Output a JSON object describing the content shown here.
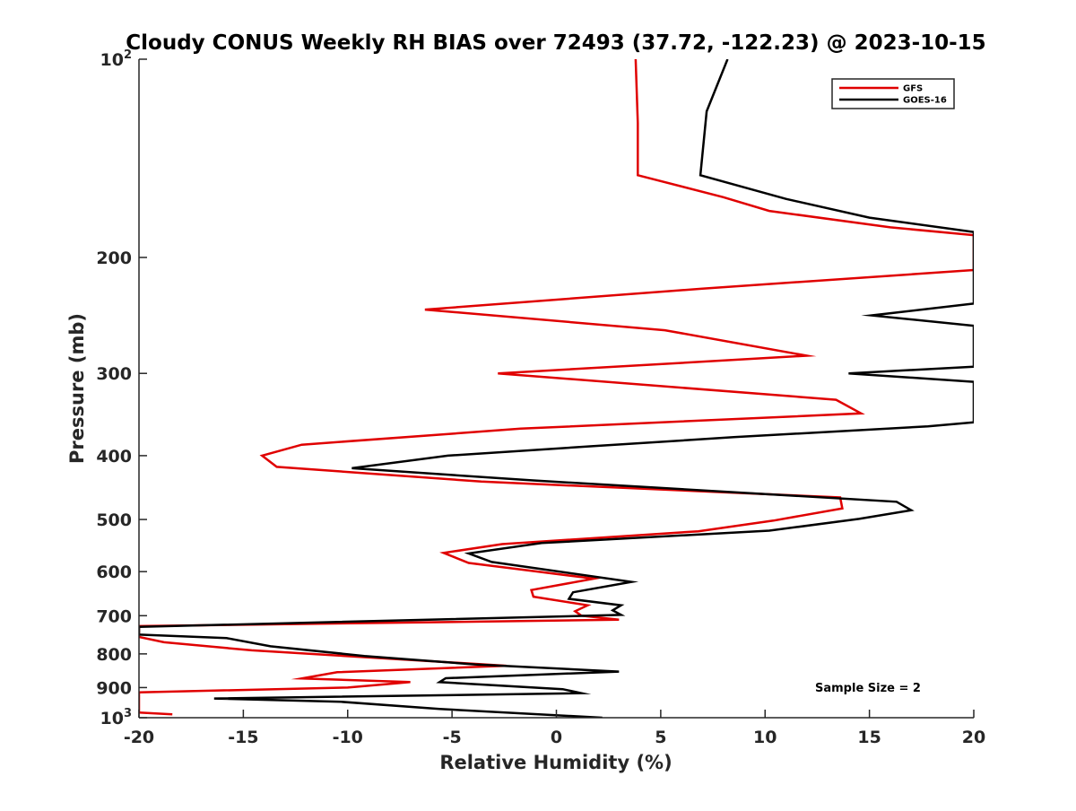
{
  "chart_data": {
    "type": "line",
    "title": "Cloudy CONUS Weekly RH BIAS over 72493 (37.72, -122.23) @ 2023-10-15",
    "xlabel": "Relative Humidity (%)",
    "ylabel": "Pressure (mb)",
    "xlim": [
      -20,
      20
    ],
    "ylim": [
      100,
      1000
    ],
    "y_scale": "log",
    "y_reversed": true,
    "grid": false,
    "x_ticks": [
      -20,
      -15,
      -10,
      -5,
      0,
      5,
      10,
      15,
      20
    ],
    "x_tick_labels": [
      "-20",
      "-15",
      "-10",
      "-5",
      "0",
      "5",
      "10",
      "15",
      "20"
    ],
    "y_ticks": [
      100,
      200,
      300,
      400,
      500,
      600,
      700,
      800,
      900,
      1000
    ],
    "y_tick_labels": [
      {
        "base": "10",
        "sup": "2"
      },
      {
        "base": "200",
        "sup": ""
      },
      {
        "base": "300",
        "sup": ""
      },
      {
        "base": "400",
        "sup": ""
      },
      {
        "base": "500",
        "sup": ""
      },
      {
        "base": "600",
        "sup": ""
      },
      {
        "base": "700",
        "sup": ""
      },
      {
        "base": "800",
        "sup": ""
      },
      {
        "base": "900",
        "sup": ""
      },
      {
        "base": "10",
        "sup": "3"
      }
    ],
    "legend_position": "top-right",
    "annotation": "Sample Size = 2",
    "series": [
      {
        "name": "GFS",
        "color": "#e00000",
        "points": [
          [
            3.8,
            100
          ],
          [
            3.9,
            125
          ],
          [
            3.9,
            150
          ],
          [
            8.0,
            162
          ],
          [
            10.2,
            170
          ],
          [
            16.0,
            180
          ],
          [
            20,
            185
          ],
          [
            20,
            209
          ],
          [
            7.0,
            223
          ],
          [
            -6.3,
            240
          ],
          [
            5.2,
            258
          ],
          [
            12.0,
            282
          ],
          [
            -2.8,
            300
          ],
          [
            13.4,
            329
          ],
          [
            14.6,
            345
          ],
          [
            -1.7,
            364
          ],
          [
            -12.2,
            385
          ],
          [
            -14.1,
            400
          ],
          [
            -13.4,
            416
          ],
          [
            -3.6,
            438
          ],
          [
            13.6,
            463
          ],
          [
            13.7,
            481
          ],
          [
            10.4,
            502
          ],
          [
            6.8,
            521
          ],
          [
            -2.6,
            545
          ],
          [
            -5.4,
            562
          ],
          [
            -4.2,
            582
          ],
          [
            1.8,
            615
          ],
          [
            -1.2,
            640
          ],
          [
            -1.1,
            655
          ],
          [
            1.5,
            675
          ],
          [
            0.9,
            689
          ],
          [
            1.2,
            700
          ],
          [
            3.0,
            710
          ],
          [
            -20,
            726
          ],
          [
            -20,
            754
          ],
          [
            -18.8,
            768
          ],
          [
            -14.6,
            790
          ],
          [
            -2.4,
            834
          ],
          [
            -10.5,
            853
          ],
          [
            -12.2,
            872
          ],
          [
            -7.0,
            883
          ],
          [
            -10.0,
            900
          ],
          [
            -20,
            915
          ],
          [
            -20,
            982
          ],
          [
            -18.4,
            988
          ]
        ]
      },
      {
        "name": "GOES-16",
        "color": "#000000",
        "points": [
          [
            8.2,
            100
          ],
          [
            7.2,
            120
          ],
          [
            6.9,
            150
          ],
          [
            11.0,
            163
          ],
          [
            15.0,
            174
          ],
          [
            20,
            183
          ],
          [
            20,
            235
          ],
          [
            15.1,
            245
          ],
          [
            20,
            254
          ],
          [
            20,
            293
          ],
          [
            14.0,
            300
          ],
          [
            20,
            309
          ],
          [
            20,
            356
          ],
          [
            17.8,
            361
          ],
          [
            8.5,
            375
          ],
          [
            1.7,
            387
          ],
          [
            -5.2,
            400
          ],
          [
            -9.8,
            418
          ],
          [
            -1.2,
            436
          ],
          [
            16.3,
            470
          ],
          [
            17.0,
            484
          ],
          [
            14.5,
            499
          ],
          [
            10.2,
            520
          ],
          [
            -0.7,
            543
          ],
          [
            -4.2,
            563
          ],
          [
            -3.1,
            580
          ],
          [
            3.6,
            622
          ],
          [
            0.8,
            645
          ],
          [
            0.6,
            660
          ],
          [
            3.1,
            675
          ],
          [
            2.7,
            687
          ],
          [
            3.1,
            698
          ],
          [
            -20,
            728
          ],
          [
            -20,
            748
          ],
          [
            -15.8,
            757
          ],
          [
            -13.7,
            779
          ],
          [
            -9.2,
            806
          ],
          [
            -3.9,
            830
          ],
          [
            3.0,
            851
          ],
          [
            -5.3,
            871
          ],
          [
            -5.6,
            883
          ],
          [
            0.3,
            905
          ],
          [
            1.2,
            918
          ],
          [
            -16.4,
            935
          ],
          [
            -10.3,
            946
          ],
          [
            -5.6,
            970
          ],
          [
            2.2,
            1000
          ]
        ]
      }
    ]
  }
}
